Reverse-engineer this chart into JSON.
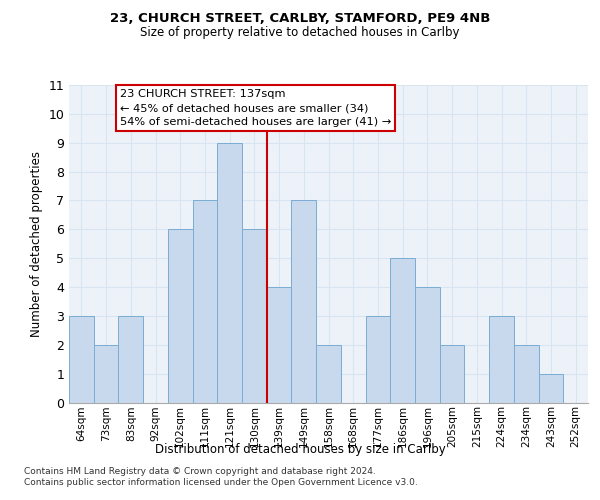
{
  "title1": "23, CHURCH STREET, CARLBY, STAMFORD, PE9 4NB",
  "title2": "Size of property relative to detached houses in Carlby",
  "xlabel": "Distribution of detached houses by size in Carlby",
  "ylabel": "Number of detached properties",
  "categories": [
    "64sqm",
    "73sqm",
    "83sqm",
    "92sqm",
    "102sqm",
    "111sqm",
    "121sqm",
    "130sqm",
    "139sqm",
    "149sqm",
    "158sqm",
    "168sqm",
    "177sqm",
    "186sqm",
    "196sqm",
    "205sqm",
    "215sqm",
    "224sqm",
    "234sqm",
    "243sqm",
    "252sqm"
  ],
  "values": [
    3,
    2,
    3,
    0,
    6,
    7,
    9,
    6,
    4,
    7,
    2,
    0,
    3,
    5,
    4,
    2,
    0,
    3,
    2,
    1,
    0
  ],
  "bar_color": "#c8d9ed",
  "bar_edge_color": "#7aadd4",
  "annotation_text_line1": "23 CHURCH STREET: 137sqm",
  "annotation_text_line2": "← 45% of detached houses are smaller (34)",
  "annotation_text_line3": "54% of semi-detached houses are larger (41) →",
  "annotation_box_color": "#ffffff",
  "annotation_box_edge": "#cc0000",
  "vline_color": "#cc0000",
  "ylim": [
    0,
    11
  ],
  "yticks": [
    0,
    1,
    2,
    3,
    4,
    5,
    6,
    7,
    8,
    9,
    10,
    11
  ],
  "footer": "Contains HM Land Registry data © Crown copyright and database right 2024.\nContains public sector information licensed under the Open Government Licence v3.0.",
  "grid_color": "#d8e4f0",
  "bg_color": "#edf2f9",
  "vline_x_index": 7.5
}
